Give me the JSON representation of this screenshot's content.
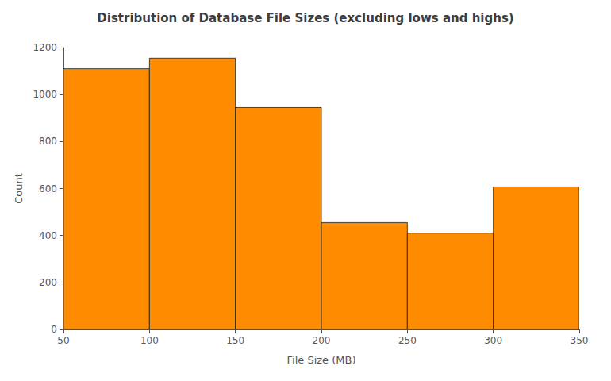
{
  "chart_data": {
    "type": "histogram",
    "title": "Distribution of Database File Sizes (excluding lows and highs)",
    "xlabel": "File Size (MB)",
    "ylabel": "Count",
    "bins": [
      50,
      100,
      150,
      200,
      250,
      300,
      350
    ],
    "values": [
      1110,
      1155,
      945,
      455,
      410,
      607
    ],
    "color": "#FF8C00",
    "xlim": [
      50,
      350
    ],
    "xticks": [
      50,
      100,
      150,
      200,
      250,
      300,
      350
    ],
    "ylim": [
      0,
      1200
    ],
    "yticks": [
      0,
      200,
      400,
      600,
      800,
      1000,
      1200
    ],
    "grid": false
  }
}
